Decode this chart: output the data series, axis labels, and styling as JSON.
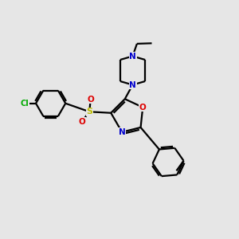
{
  "background_color": "#e6e6e6",
  "atom_colors": {
    "C": "#000000",
    "N": "#0000cc",
    "O": "#dd0000",
    "S": "#bbbb00",
    "Cl": "#00aa00"
  },
  "bond_color": "#000000",
  "lw": 1.6,
  "figsize": [
    3.0,
    3.0
  ],
  "dpi": 100
}
